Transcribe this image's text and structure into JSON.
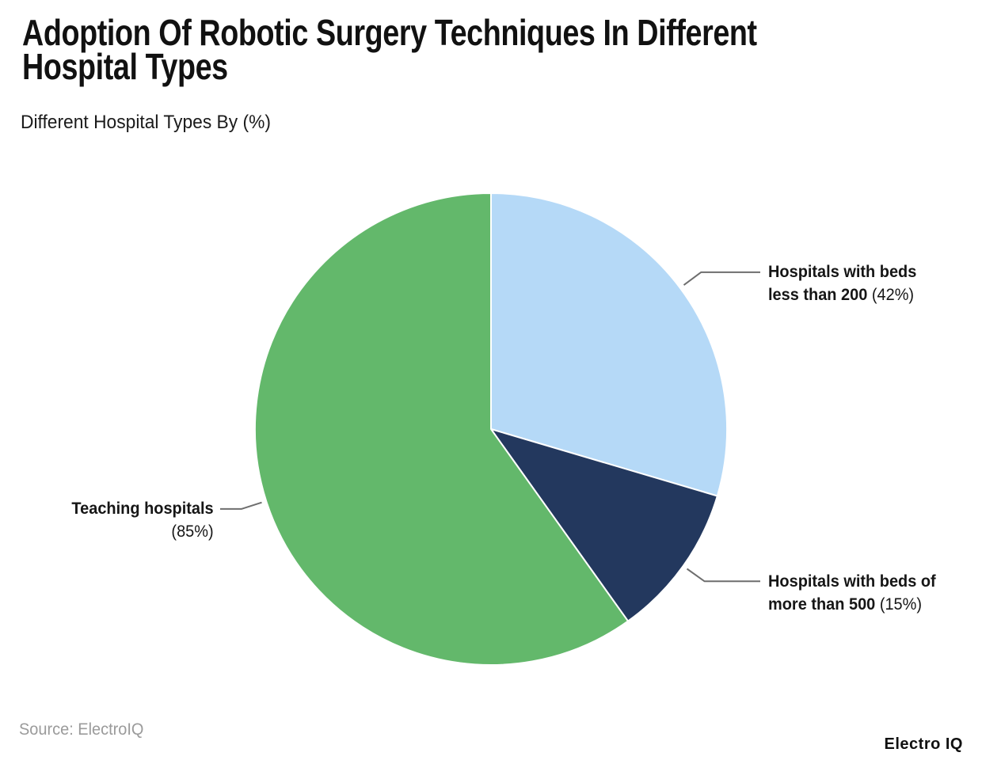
{
  "header": {
    "title": "Adoption Of Robotic Surgery Techniques In Different Hospital Types",
    "title_lines": [
      "Adoption Of Robotic Surgery Techniques In Different",
      "Hospital Types"
    ],
    "subtitle": "Different Hospital Types By (%)"
  },
  "chart_data": {
    "type": "pie",
    "title": "Adoption Of Robotic Surgery Techniques In Different Hospital Types",
    "subtitle": "Different Hospital Types By (%)",
    "unit": "%",
    "direction": "clockwise",
    "start_angle_deg": 0,
    "legend": "none",
    "leader_color": "#6e6e6e",
    "slice_border_color": "#ffffff",
    "slices": [
      {
        "label": "Hospitals with beds less than 200",
        "value": 42,
        "pct_label": "(42%)",
        "color": "#b5d9f7",
        "bold_lines": [
          "Hospitals with beds",
          "less than 200"
        ],
        "pct_on_own_line": false
      },
      {
        "label": "Hospitals with beds of more than 500",
        "value": 15,
        "pct_label": "(15%)",
        "color": "#23385e",
        "bold_lines": [
          "Hospitals with beds of",
          "more than 500"
        ],
        "pct_on_own_line": false
      },
      {
        "label": "Teaching hospitals",
        "value": 85,
        "pct_label": "(85%)",
        "color": "#63b86b",
        "bold_lines": [
          "Teaching hospitals"
        ],
        "pct_on_own_line": true
      }
    ]
  },
  "footer": {
    "source": "Source: ElectroIQ",
    "brand": "Electro IQ"
  }
}
